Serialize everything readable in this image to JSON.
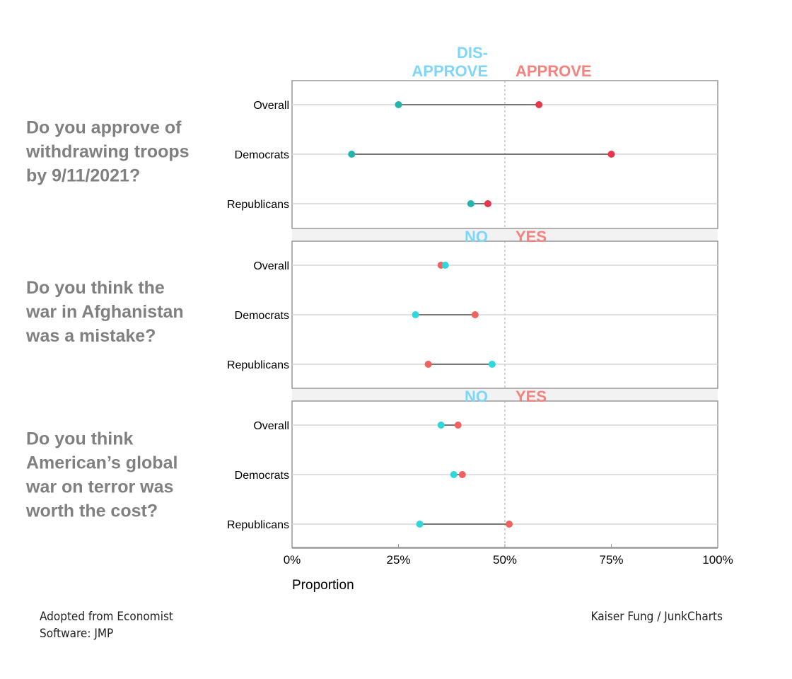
{
  "chart_data": {
    "type": "dumbbell",
    "xlabel": "Proportion",
    "xlim": [
      0,
      100
    ],
    "x_ticks": [
      "0%",
      "25%",
      "50%",
      "75%",
      "100%"
    ],
    "reference_line": 50,
    "grid": "horizontal",
    "panels": [
      {
        "question": [
          "Do you approve of",
          "withdrawing troops",
          "by 9/11/2021?"
        ],
        "neg_label": [
          "DIS-",
          "APPROVE"
        ],
        "pos_label": [
          "APPROVE"
        ],
        "neg_color": "#22b5ae",
        "pos_color": "#e8364b",
        "rows": [
          {
            "label": "Overall",
            "neg": 25,
            "pos": 58
          },
          {
            "label": "Democrats",
            "neg": 14,
            "pos": 75
          },
          {
            "label": "Republicans",
            "neg": 42,
            "pos": 46
          }
        ]
      },
      {
        "question": [
          "Do you think the",
          "war in Afghanistan",
          "was a mistake?"
        ],
        "neg_label": [
          "NO"
        ],
        "pos_label": [
          "YES"
        ],
        "neg_color": "#2bd9dc",
        "pos_color": "#f1625f",
        "rows": [
          {
            "label": "Overall",
            "neg": 36,
            "pos": 35
          },
          {
            "label": "Democrats",
            "neg": 29,
            "pos": 43
          },
          {
            "label": "Republicans",
            "neg": 47,
            "pos": 32
          }
        ]
      },
      {
        "question": [
          "Do you think",
          "American’s global",
          "war on terror was",
          "worth the cost?"
        ],
        "neg_label": [
          "NO"
        ],
        "pos_label": [
          "YES"
        ],
        "neg_color": "#2bd9dc",
        "pos_color": "#f1625f",
        "rows": [
          {
            "label": "Overall",
            "neg": 35,
            "pos": 39
          },
          {
            "label": "Democrats",
            "neg": 38,
            "pos": 40
          },
          {
            "label": "Republicans",
            "neg": 30,
            "pos": 51
          }
        ]
      }
    ],
    "header_colors": {
      "neg": "#7fd6fb",
      "pos": "#f7817c"
    }
  },
  "footer": {
    "left": [
      "Adopted from Economist",
      "Software: JMP"
    ],
    "right": "Kaiser Fung / JunkCharts"
  }
}
